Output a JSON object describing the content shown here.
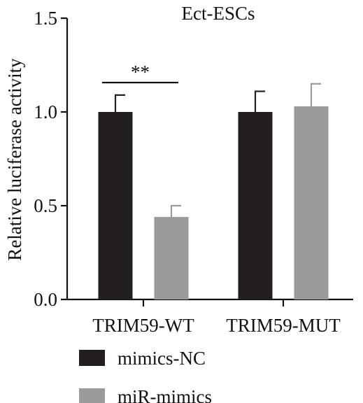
{
  "chart_data": {
    "type": "bar",
    "title": "Ect-ESCs",
    "ylabel": "Relative luciferase activity",
    "xlabel": "",
    "ylim": [
      0,
      1.5
    ],
    "yticks": [
      "0.0",
      "0.5",
      "1.0",
      "1.5"
    ],
    "categories": [
      "TRIM59-WT",
      "TRIM59-MUT"
    ],
    "series": [
      {
        "name": "mimics-NC",
        "color": "#231f20",
        "values": [
          1.0,
          1.0
        ],
        "errors": [
          0.09,
          0.11
        ]
      },
      {
        "name": "miR-mimics",
        "color": "#9a9b9d",
        "values": [
          0.44,
          1.03
        ],
        "errors": [
          0.06,
          0.12
        ]
      }
    ],
    "annotations": [
      {
        "text": "**",
        "category_index": 0
      }
    ],
    "grid": false,
    "legend_position": "bottom-left"
  }
}
